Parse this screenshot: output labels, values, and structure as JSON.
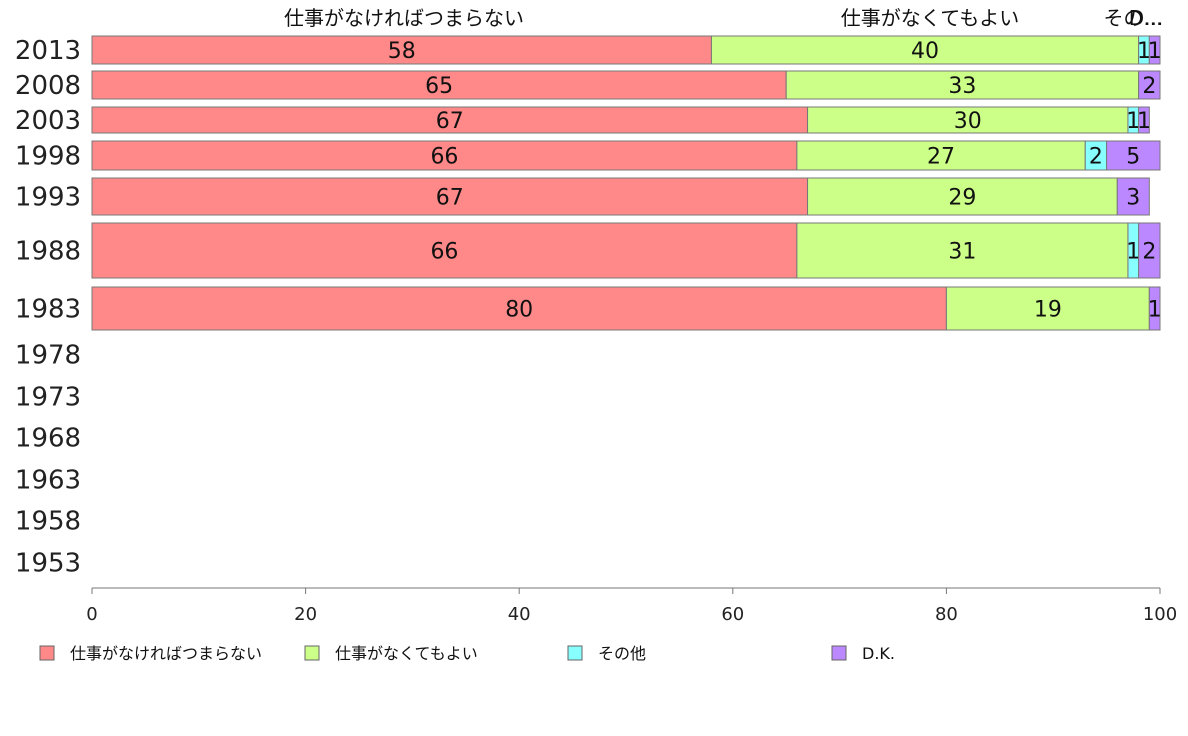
{
  "chart_data": {
    "type": "bar",
    "orientation": "horizontal",
    "stacked": true,
    "xlim": [
      0,
      100
    ],
    "x_ticks": [
      0,
      20,
      40,
      60,
      80,
      100
    ],
    "x_tick_labels": [
      "0",
      "20",
      "40",
      "60",
      "80",
      "100"
    ],
    "categories": [
      "2013",
      "2008",
      "2003",
      "1998",
      "1993",
      "1988",
      "1983",
      "1978",
      "1973",
      "1968",
      "1963",
      "1958",
      "1953"
    ],
    "series": [
      {
        "name": "仕事がなければつまらない",
        "color": "#ff8888",
        "values": [
          58,
          65,
          67,
          66,
          67,
          66,
          80,
          null,
          null,
          null,
          null,
          null,
          null
        ]
      },
      {
        "name": "仕事がなくてもよい",
        "color": "#ccff88",
        "values": [
          40,
          33,
          30,
          27,
          29,
          31,
          19,
          null,
          null,
          null,
          null,
          null,
          null
        ]
      },
      {
        "name": "その他",
        "color": "#88ffff",
        "values": [
          1,
          0,
          1,
          2,
          0,
          1,
          0,
          null,
          null,
          null,
          null,
          null,
          null
        ]
      },
      {
        "name": "D.K.",
        "color": "#bb88ff",
        "values": [
          1,
          2,
          1,
          5,
          3,
          2,
          1,
          null,
          null,
          null,
          null,
          null,
          null
        ]
      }
    ],
    "top_labels": [
      "仕事がなければつまらない",
      "仕事がなくてもよい",
      "その...",
      "D..."
    ],
    "legend_position": "bottom",
    "grid": false
  }
}
